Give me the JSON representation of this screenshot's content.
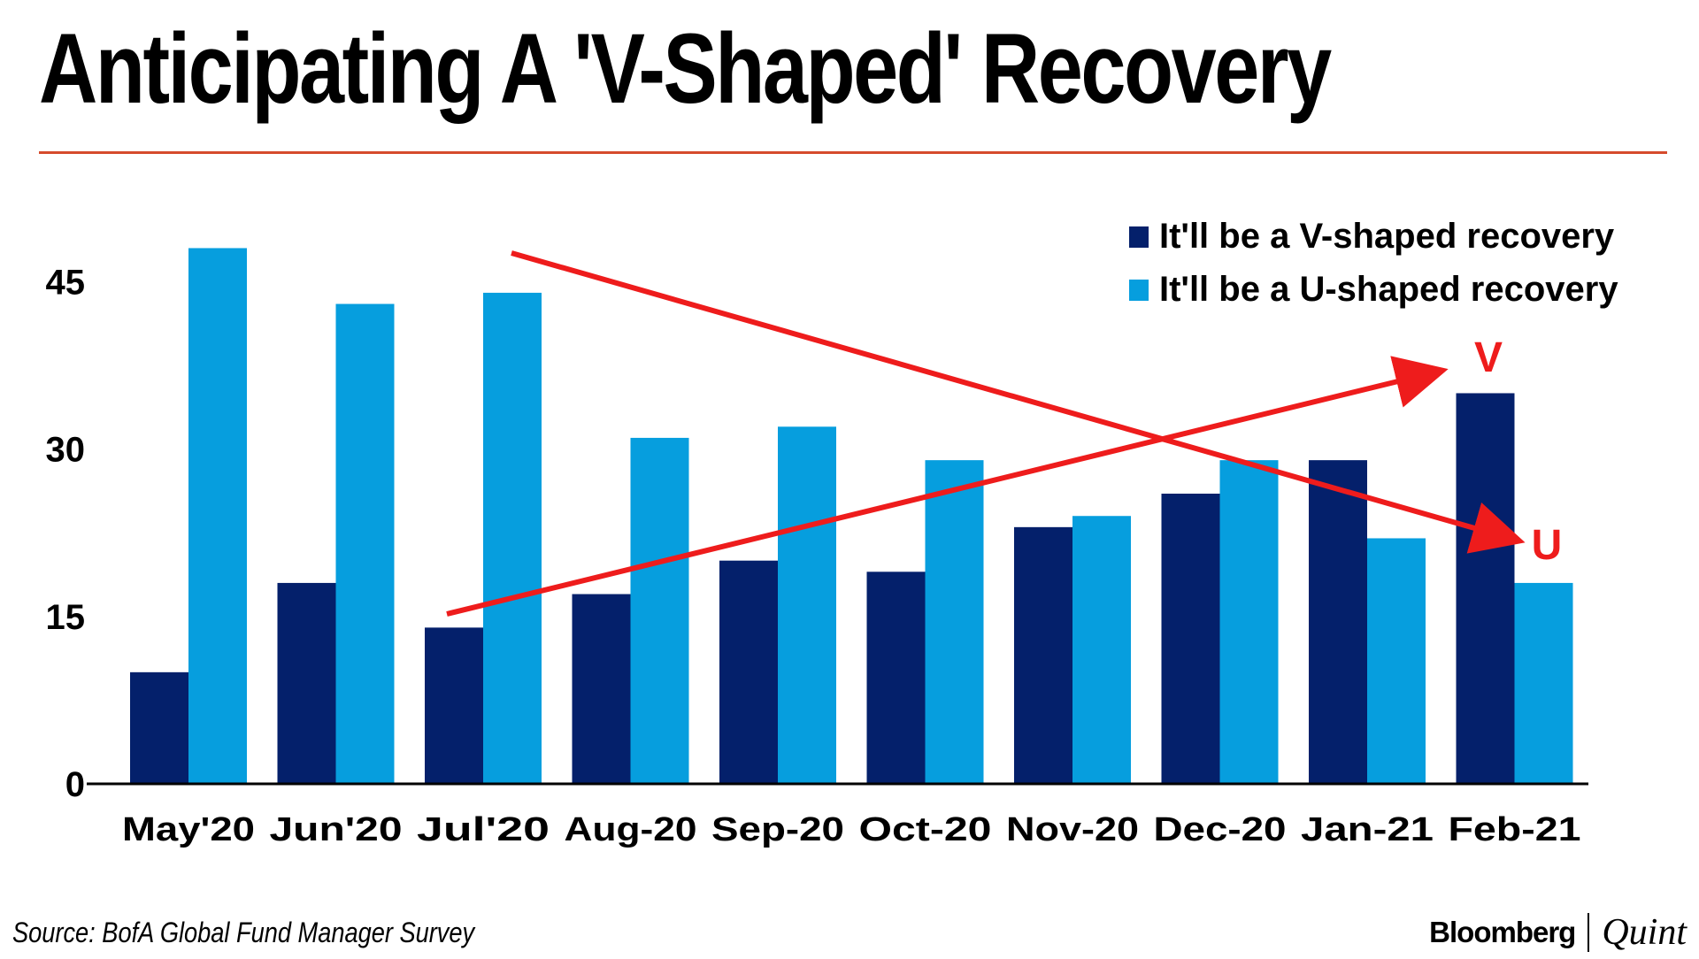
{
  "title": "Anticipating A 'V-Shaped' Recovery",
  "colors": {
    "title_rule": "#d64b2c",
    "v_series": "#04206b",
    "u_series": "#069ede",
    "annotation": "#ee1c1c",
    "text": "#000000"
  },
  "chart_data": {
    "type": "bar",
    "title": "Anticipating A 'V-Shaped' Recovery",
    "categories": [
      "May'20",
      "Jun'20",
      "Jul'20",
      "Aug-20",
      "Sep-20",
      "Oct-20",
      "Nov-20",
      "Dec-20",
      "Jan-21",
      "Feb-21"
    ],
    "series": [
      {
        "name": "It'll be a V-shaped recovery",
        "values": [
          10,
          18,
          14,
          17,
          20,
          19,
          23,
          26,
          29,
          35
        ]
      },
      {
        "name": "It'll be a U-shaped recovery",
        "values": [
          48,
          43,
          44,
          31,
          32,
          29,
          24,
          29,
          22,
          18
        ]
      }
    ],
    "yticks": [
      0,
      15,
      30,
      45
    ],
    "ylim": [
      0,
      52
    ],
    "xlabel": "",
    "ylabel": "",
    "legend": "top-right",
    "grid": false,
    "annotations": {
      "v_label": "V",
      "u_label": "U",
      "v_arrow": "rising trend arrow ending at the V label",
      "u_arrow": "falling trend arrow ending at the U label"
    }
  },
  "source": "Source: BofA Global Fund Manager Survey",
  "brand": {
    "left": "Bloomberg",
    "right": "Quint"
  }
}
